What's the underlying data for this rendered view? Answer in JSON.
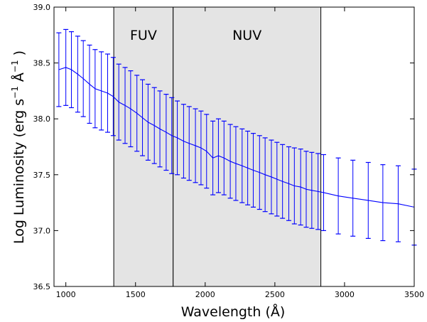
{
  "chart_data": {
    "type": "line",
    "xlabel": "Wavelength (Å)",
    "ylabel_parts": [
      "Log Luminosity (erg s",
      "−1",
      " Å",
      "−1",
      " )"
    ],
    "xlim": [
      915,
      3500
    ],
    "ylim": [
      36.5,
      39.0
    ],
    "x_ticks": [
      1000,
      1500,
      2000,
      2500,
      3000,
      3500
    ],
    "y_ticks": [
      36.5,
      37.0,
      37.5,
      38.0,
      38.5,
      39.0
    ],
    "x_tick_labels": [
      "1000",
      "1500",
      "2000",
      "2500",
      "3000",
      "3500"
    ],
    "y_tick_labels": [
      "36.5",
      "37.0",
      "37.5",
      "38.0",
      "38.5",
      "39.0"
    ],
    "grid": false,
    "line_color": "#0000ff",
    "band_color": "#e4e4e4",
    "bands": [
      {
        "label": "FUV",
        "x_start": 1344,
        "x_end": 1770
      },
      {
        "label": "NUV",
        "x_start": 1770,
        "x_end": 2830
      }
    ],
    "series": [
      {
        "x": [
          950,
          1000,
          1040,
          1085,
          1125,
          1170,
          1210,
          1255,
          1300,
          1340,
          1380,
          1425,
          1465,
          1510,
          1550,
          1590,
          1635,
          1675,
          1720,
          1760,
          1800,
          1845,
          1885,
          1930,
          1970,
          2010,
          2055,
          2095,
          2135,
          2180,
          2220,
          2265,
          2305,
          2345,
          2390,
          2430,
          2475,
          2515,
          2555,
          2600,
          2640,
          2685,
          2725,
          2765,
          2810,
          2850,
          2955,
          3060,
          3170,
          3275,
          3385,
          3500
        ],
        "y": [
          38.44,
          38.46,
          38.44,
          38.4,
          38.36,
          38.31,
          38.27,
          38.25,
          38.23,
          38.2,
          38.15,
          38.12,
          38.09,
          38.05,
          38.01,
          37.97,
          37.94,
          37.91,
          37.88,
          37.85,
          37.83,
          37.8,
          37.78,
          37.76,
          37.74,
          37.71,
          37.65,
          37.67,
          37.65,
          37.62,
          37.6,
          37.58,
          37.56,
          37.54,
          37.52,
          37.5,
          37.48,
          37.46,
          37.44,
          37.42,
          37.4,
          37.39,
          37.37,
          37.36,
          37.35,
          37.34,
          37.31,
          37.29,
          37.27,
          37.25,
          37.24,
          37.21
        ],
        "err": [
          0.33,
          0.34,
          0.34,
          0.34,
          0.34,
          0.35,
          0.35,
          0.35,
          0.35,
          0.35,
          0.34,
          0.34,
          0.34,
          0.34,
          0.34,
          0.34,
          0.34,
          0.34,
          0.34,
          0.34,
          0.33,
          0.33,
          0.33,
          0.33,
          0.33,
          0.33,
          0.33,
          0.33,
          0.33,
          0.33,
          0.33,
          0.33,
          0.33,
          0.33,
          0.33,
          0.33,
          0.33,
          0.33,
          0.33,
          0.33,
          0.34,
          0.34,
          0.34,
          0.34,
          0.34,
          0.34,
          0.34,
          0.34,
          0.34,
          0.34,
          0.34,
          0.34
        ]
      }
    ]
  }
}
